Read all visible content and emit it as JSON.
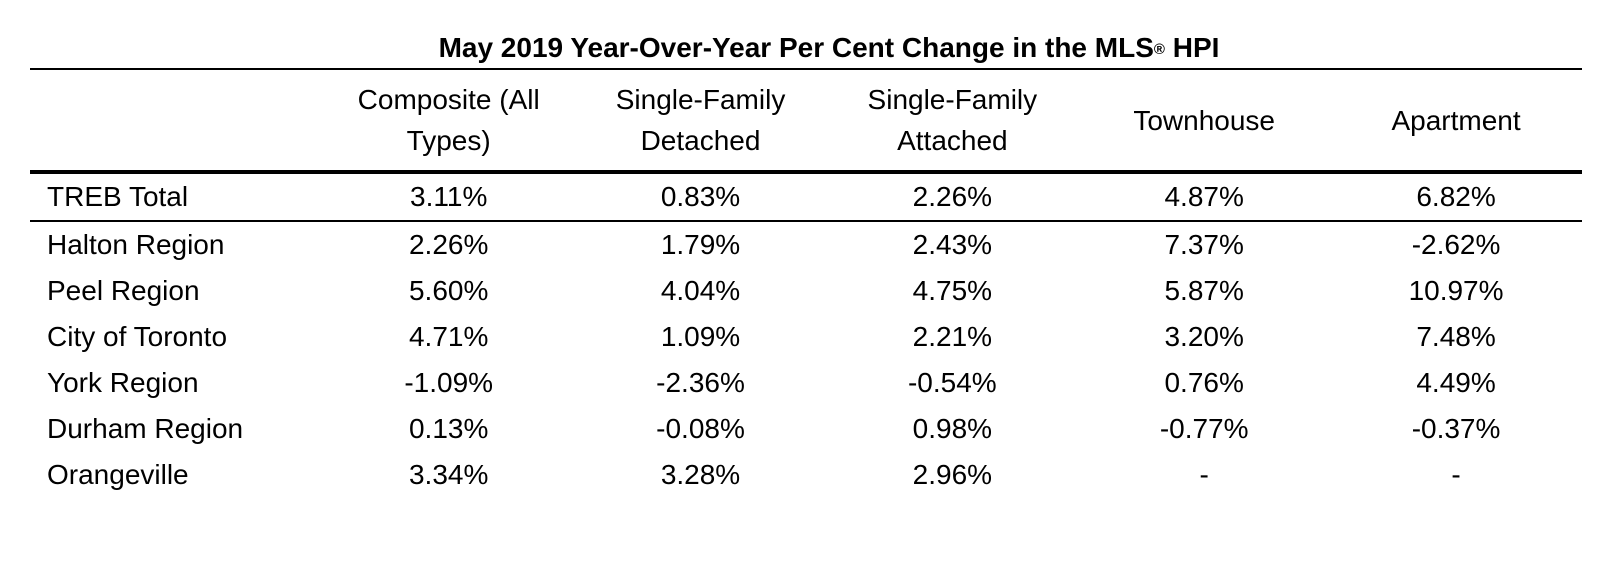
{
  "table": {
    "title": "May 2019 Year-Over-Year Per Cent Change in the MLS",
    "title_mark": "®",
    "title_suffix": " HPI",
    "headers": [
      "",
      "Composite (All Types)",
      "Single-Family Detached",
      "Single-Family Attached",
      "Townhouse",
      "Apartment"
    ],
    "rows": [
      {
        "region": "TREB Total",
        "values": [
          "3.11%",
          "0.83%",
          "2.26%",
          "4.87%",
          "6.82%"
        ]
      },
      {
        "region": "Halton Region",
        "values": [
          "2.26%",
          "1.79%",
          "2.43%",
          "7.37%",
          "-2.62%"
        ]
      },
      {
        "region": "Peel Region",
        "values": [
          "5.60%",
          "4.04%",
          "4.75%",
          "5.87%",
          "10.97%"
        ]
      },
      {
        "region": "City of Toronto",
        "values": [
          "4.71%",
          "1.09%",
          "2.21%",
          "3.20%",
          "7.48%"
        ]
      },
      {
        "region": "York Region",
        "values": [
          "-1.09%",
          "-2.36%",
          "-0.54%",
          "0.76%",
          "4.49%"
        ]
      },
      {
        "region": "Durham Region",
        "values": [
          "0.13%",
          "-0.08%",
          "0.98%",
          "-0.77%",
          "-0.37%"
        ]
      },
      {
        "region": "Orangeville",
        "values": [
          "3.34%",
          "3.28%",
          "2.96%",
          "-",
          "-"
        ]
      }
    ]
  }
}
